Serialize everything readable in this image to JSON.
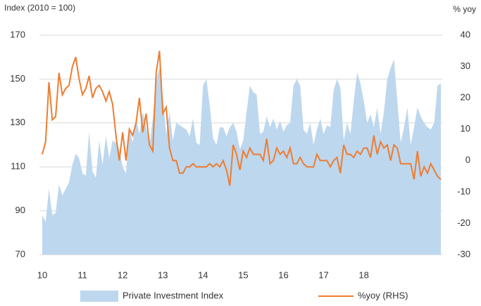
{
  "chart_data": {
    "type": "area",
    "y_label": "Index (2010 = 100)",
    "y2_label": "% yoy",
    "categories": [
      "10",
      null,
      null,
      null,
      null,
      null,
      null,
      null,
      null,
      null,
      null,
      null,
      "11",
      null,
      null,
      null,
      null,
      null,
      null,
      null,
      null,
      null,
      null,
      null,
      "12",
      null,
      null,
      null,
      null,
      null,
      null,
      null,
      null,
      null,
      null,
      null,
      "13",
      null,
      null,
      null,
      null,
      null,
      null,
      null,
      null,
      null,
      null,
      null,
      "14",
      null,
      null,
      null,
      null,
      null,
      null,
      null,
      null,
      null,
      null,
      null,
      "15",
      null,
      null,
      null,
      null,
      null,
      null,
      null,
      null,
      null,
      null,
      null,
      "16",
      null,
      null,
      null,
      null,
      null,
      null,
      null,
      null,
      null,
      null,
      null,
      "17",
      null,
      null,
      null,
      null,
      null,
      null,
      null,
      null,
      null,
      null,
      null,
      "18",
      null,
      null,
      null,
      null,
      null,
      null,
      null,
      null,
      null,
      null,
      null,
      null,
      null,
      null,
      null,
      null,
      null,
      null,
      null,
      null,
      null,
      null,
      null
    ],
    "series": [
      {
        "name": "Private Investment Index",
        "type": "area",
        "color": "#bdd7ee",
        "axis": "y",
        "values": [
          88,
          85,
          100,
          88,
          89,
          102,
          97,
          100,
          103,
          111,
          116,
          114,
          107,
          106,
          126,
          108,
          105,
          122,
          111,
          124,
          114,
          122,
          121,
          118,
          110,
          107,
          128,
          121,
          132,
          125,
          135,
          128,
          120,
          132,
          150,
          155,
          142,
          125,
          135,
          122,
          130,
          129,
          128,
          127,
          124,
          132,
          121,
          120,
          147,
          150,
          138,
          123,
          120,
          128,
          128,
          124,
          128,
          130,
          126,
          118,
          122,
          135,
          147,
          144,
          143,
          125,
          126,
          133,
          128,
          132,
          127,
          131,
          126,
          129,
          130,
          147,
          150,
          147,
          127,
          125,
          130,
          120,
          127,
          132,
          125,
          129,
          128,
          145,
          150,
          146,
          122,
          130,
          125,
          140,
          153,
          148,
          140,
          130,
          134,
          128,
          137,
          125,
          135,
          150,
          155,
          159,
          140,
          121,
          128,
          137,
          120,
          128,
          137,
          133,
          130,
          128,
          127,
          130,
          147,
          148
        ]
      },
      {
        "name": "%yoy (RHS)",
        "type": "line",
        "color": "#ed7d31",
        "axis": "y2",
        "values": [
          2,
          6,
          25,
          13,
          14,
          28,
          21,
          23,
          24,
          30,
          33,
          26,
          21,
          23,
          27,
          20,
          23,
          24,
          22,
          19,
          22,
          18,
          8,
          0,
          9,
          0,
          10,
          8,
          12,
          20,
          9,
          15,
          5,
          3,
          28,
          35,
          15,
          17,
          4,
          0,
          0,
          -4,
          -4,
          -2,
          -2,
          -1,
          -2,
          -2,
          -2,
          -2,
          -1,
          -2,
          -1,
          -2,
          0,
          -3,
          -8,
          5,
          2,
          -3,
          3,
          1,
          4,
          2,
          2,
          2,
          0,
          7,
          -1,
          0,
          4,
          2,
          3,
          1,
          4,
          -1,
          -1,
          1,
          -1,
          -2,
          -2,
          -2,
          2,
          0,
          0,
          0,
          -2,
          0,
          1,
          -4,
          5,
          2,
          2,
          1,
          3,
          2,
          4,
          4,
          1,
          8,
          2,
          6,
          4,
          5,
          0,
          5,
          4,
          -1,
          -1,
          -1,
          -1,
          -6,
          3,
          -5,
          -2,
          -4,
          -1,
          -3,
          -5,
          -6
        ]
      }
    ],
    "ylim": [
      70,
      170
    ],
    "yticks": [
      70,
      90,
      110,
      130,
      150,
      170
    ],
    "y2lim": [
      -30,
      40
    ],
    "y2ticks": [
      -30,
      -20,
      -10,
      0,
      10,
      20,
      30,
      40
    ],
    "grid": true
  }
}
